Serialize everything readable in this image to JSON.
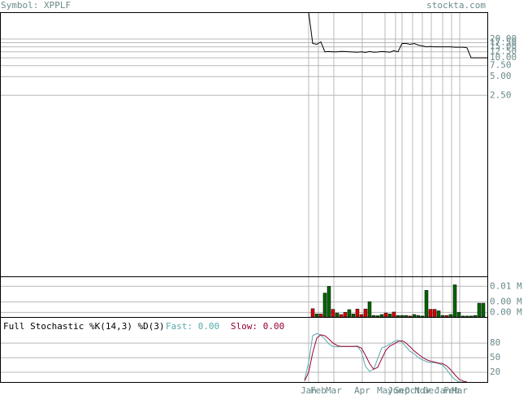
{
  "header": {
    "symbol": "Symbol: XPPLF",
    "site": "stockta.com"
  },
  "chart_data": [
    {
      "type": "line",
      "log_scale": true,
      "grid": true,
      "color": "#000000",
      "xlim": [
        0,
        120
      ],
      "ylim": [
        0.0031,
        54
      ],
      "yticks": [
        {
          "value": 20,
          "label": "20.00"
        },
        {
          "value": 17.5,
          "label": "17.50"
        },
        {
          "value": 15,
          "label": "15.00"
        },
        {
          "value": 12.5,
          "label": "12.50"
        },
        {
          "value": 10,
          "label": "10.00"
        },
        {
          "value": 7.5,
          "label": "7.50"
        },
        {
          "value": 5,
          "label": "5.00"
        },
        {
          "value": 2.5,
          "label": "2.50"
        }
      ],
      "x": [
        76,
        77,
        78,
        79,
        80,
        81,
        82,
        83,
        84,
        85,
        86,
        87,
        88,
        89,
        90,
        91,
        92,
        93,
        94,
        95,
        96,
        97,
        98,
        99,
        100,
        101,
        102,
        103,
        104,
        105,
        106,
        107,
        108,
        109,
        110,
        111,
        112,
        113,
        114,
        115,
        116,
        117,
        118,
        119,
        120
      ],
      "values": [
        54,
        17,
        16.5,
        18,
        12.5,
        12.6,
        12.5,
        12.5,
        12.7,
        12.6,
        12.5,
        12.4,
        12.3,
        12.5,
        12.2,
        12.6,
        12.3,
        12.4,
        12.6,
        12.5,
        12.3,
        13,
        12.5,
        17,
        17,
        16.5,
        17,
        16,
        15.5,
        15,
        15.2,
        15,
        15,
        15,
        15,
        15,
        14.8,
        14.8,
        14.8,
        14.5,
        10,
        10,
        10,
        10,
        10
      ]
    },
    {
      "type": "bar",
      "grid": true,
      "xlim": [
        0,
        120
      ],
      "ylim": [
        0,
        0.013
      ],
      "yticks": [
        {
          "value": 0.01,
          "label": "0.01 M"
        },
        {
          "value": 0.0049,
          "label": "0.00 M"
        },
        {
          "value": 0.0015,
          "label": "0.00 M"
        }
      ],
      "x": [
        77,
        78,
        79,
        80,
        81,
        82,
        83,
        84,
        85,
        86,
        87,
        88,
        89,
        90,
        91,
        92,
        93,
        94,
        95,
        96,
        97,
        98,
        99,
        100,
        101,
        102,
        103,
        104,
        105,
        106,
        107,
        108,
        109,
        110,
        111,
        112,
        113,
        114,
        115,
        116,
        117,
        118,
        119
      ],
      "values": [
        0.0027,
        0.001,
        0.001,
        0.0078,
        0.01,
        0.0025,
        0.0013,
        0.0008,
        0.0015,
        0.0024,
        0.001,
        0.0026,
        0.0008,
        0.0026,
        0.005,
        0.0005,
        0.0004,
        0.0008,
        0.0013,
        0.001,
        0.0016,
        0.0005,
        0.0005,
        0.0005,
        0.0003,
        0.0008,
        0.0005,
        0.0003,
        0.0087,
        0.0025,
        0.0025,
        0.002,
        0.0005,
        0.0005,
        0.0008,
        0.0105,
        0.0015,
        0.0003,
        0.0003,
        0.0003,
        0.0005,
        0.0045,
        0.0045
      ],
      "colors": [
        "#dd0000",
        "#006600",
        "#dd0000",
        "#006600",
        "#006600",
        "#dd0000",
        "#006600",
        "#dd0000",
        "#dd0000",
        "#006600",
        "#006600",
        "#dd0000",
        "#dd0000",
        "#dd0000",
        "#006600",
        "#006600",
        "#006600",
        "#006600",
        "#dd0000",
        "#006600",
        "#dd0000",
        "#006600",
        "#006600",
        "#006600",
        "#dd0000",
        "#006600",
        "#006600",
        "#006600",
        "#006600",
        "#dd0000",
        "#dd0000",
        "#006600",
        "#006600",
        "#dd0000",
        "#006600",
        "#006600",
        "#006600",
        "#006600",
        "#006600",
        "#006600",
        "#006600",
        "#006600",
        "#006600"
      ]
    },
    {
      "type": "line",
      "grid": true,
      "title": "Full Stochastic %K(14,3) %D(3)",
      "fast_label": "Fast: 0.00",
      "slow_label": "Slow: 0.00",
      "xlim": [
        0,
        120
      ],
      "ylim": [
        0,
        132
      ],
      "yticks": [
        80,
        50,
        20
      ],
      "xticks": [
        {
          "value": 76,
          "label": "Jan"
        },
        {
          "value": 78.4,
          "label": "Feb"
        },
        {
          "value": 82.2,
          "label": "Mar"
        },
        {
          "value": 89.2,
          "label": "Apr"
        },
        {
          "value": 94.8,
          "label": "May"
        },
        {
          "value": 97.4,
          "label": "Jun"
        },
        {
          "value": 99,
          "label": "Sep"
        },
        {
          "value": 101.6,
          "label": "Oct"
        },
        {
          "value": 104,
          "label": "Nov"
        },
        {
          "value": 106.2,
          "label": "Dec"
        },
        {
          "value": 109,
          "label": "Jan"
        },
        {
          "value": 111.2,
          "label": "Feb"
        },
        {
          "value": 113.2,
          "label": "Mar"
        }
      ],
      "x": [
        75,
        76,
        77,
        78,
        79,
        80,
        81,
        82,
        83,
        84,
        85,
        86,
        87,
        88,
        89,
        90,
        91,
        92,
        93,
        94,
        95,
        96,
        97,
        98,
        99,
        100,
        101,
        102,
        103,
        104,
        105,
        106,
        107,
        108,
        109,
        110,
        111,
        112,
        113,
        114,
        115
      ],
      "series": [
        {
          "color": "#55aaaa",
          "values": [
            5,
            40,
            95,
            100,
            96,
            88,
            78,
            73,
            72,
            73,
            73,
            73,
            73,
            74,
            62,
            32,
            22,
            26,
            48,
            70,
            73,
            78,
            83,
            86,
            82,
            72,
            63,
            58,
            50,
            46,
            42,
            40,
            40,
            38,
            35,
            25,
            14,
            5,
            0,
            0,
            0
          ]
        },
        {
          "color": "#990033",
          "values": [
            2,
            20,
            60,
            90,
            97,
            95,
            88,
            80,
            75,
            73,
            73,
            73,
            73,
            73,
            70,
            55,
            38,
            26,
            30,
            48,
            65,
            74,
            78,
            83,
            85,
            80,
            72,
            64,
            57,
            51,
            46,
            43,
            41,
            39,
            38,
            33,
            25,
            15,
            6,
            2,
            0
          ]
        }
      ]
    }
  ]
}
